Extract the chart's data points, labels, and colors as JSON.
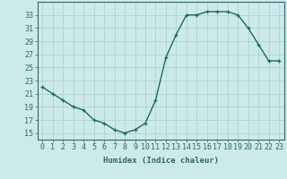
{
  "x": [
    0,
    1,
    2,
    3,
    4,
    5,
    6,
    7,
    8,
    9,
    10,
    11,
    12,
    13,
    14,
    15,
    16,
    17,
    18,
    19,
    20,
    21,
    22,
    23
  ],
  "y": [
    22,
    21,
    20,
    19,
    18.5,
    17,
    16.5,
    15.5,
    15,
    15.5,
    16.5,
    20,
    26.5,
    30,
    33,
    33,
    33.5,
    33.5,
    33.5,
    33,
    31,
    28.5,
    26,
    26
  ],
  "line_color": "#1a6b5a",
  "marker": "+",
  "xlabel": "Humidex (Indice chaleur)",
  "xlim": [
    -0.5,
    23.5
  ],
  "ylim": [
    14,
    35
  ],
  "yticks": [
    15,
    17,
    19,
    21,
    23,
    25,
    27,
    29,
    31,
    33
  ],
  "xticks": [
    0,
    1,
    2,
    3,
    4,
    5,
    6,
    7,
    8,
    9,
    10,
    11,
    12,
    13,
    14,
    15,
    16,
    17,
    18,
    19,
    20,
    21,
    22,
    23
  ],
  "xtick_labels": [
    "0",
    "1",
    "2",
    "3",
    "4",
    "5",
    "6",
    "7",
    "8",
    "9",
    "10",
    "11",
    "12",
    "13",
    "14",
    "15",
    "16",
    "17",
    "18",
    "19",
    "20",
    "21",
    "22",
    "23"
  ],
  "bg_color": "#cceaea",
  "grid_color": "#aacccc",
  "axis_color": "#336666",
  "tick_color": "#336666",
  "label_fontsize": 6.5,
  "tick_fontsize": 6.0,
  "linewidth": 1.0,
  "markersize": 3.5,
  "markeredgewidth": 0.9
}
